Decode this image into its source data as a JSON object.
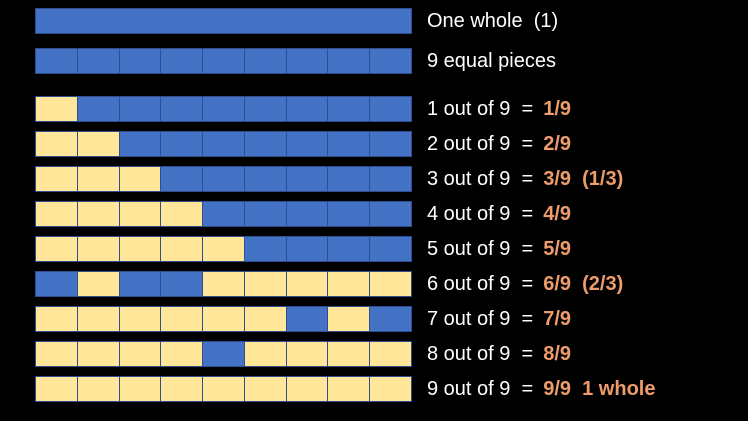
{
  "colors": {
    "background": "#000000",
    "bar_blue": "#4472C4",
    "bar_yellow": "#FFE699",
    "cell_border": "#2E4E8F",
    "label_text": "#FFFFFF",
    "fraction_text": "#ED9C6B"
  },
  "rows": [
    {
      "label": "One whole  (1)",
      "fraction": "",
      "cells": [
        "blue"
      ]
    },
    {
      "label": "9 equal pieces",
      "fraction": "",
      "cells": [
        "blue",
        "blue",
        "blue",
        "blue",
        "blue",
        "blue",
        "blue",
        "blue",
        "blue"
      ]
    },
    {
      "label": "1 out of 9  =",
      "fraction": "1/9",
      "cells": [
        "yellow",
        "blue",
        "blue",
        "blue",
        "blue",
        "blue",
        "blue",
        "blue",
        "blue"
      ]
    },
    {
      "label": "2 out of 9  =",
      "fraction": "2/9",
      "cells": [
        "yellow",
        "yellow",
        "blue",
        "blue",
        "blue",
        "blue",
        "blue",
        "blue",
        "blue"
      ]
    },
    {
      "label": "3 out of 9  =",
      "fraction": "3/9  (1/3)",
      "cells": [
        "yellow",
        "yellow",
        "yellow",
        "blue",
        "blue",
        "blue",
        "blue",
        "blue",
        "blue"
      ]
    },
    {
      "label": "4 out of 9  =",
      "fraction": "4/9",
      "cells": [
        "yellow",
        "yellow",
        "yellow",
        "yellow",
        "blue",
        "blue",
        "blue",
        "blue",
        "blue"
      ]
    },
    {
      "label": "5 out of 9  =",
      "fraction": "5/9",
      "cells": [
        "yellow",
        "yellow",
        "yellow",
        "yellow",
        "yellow",
        "blue",
        "blue",
        "blue",
        "blue"
      ]
    },
    {
      "label": "6 out of 9  =",
      "fraction": "6/9  (2/3)",
      "cells": [
        "blue",
        "yellow",
        "blue",
        "blue",
        "yellow",
        "yellow",
        "yellow",
        "yellow",
        "yellow"
      ]
    },
    {
      "label": "7 out of 9  =",
      "fraction": "7/9",
      "cells": [
        "yellow",
        "yellow",
        "yellow",
        "yellow",
        "yellow",
        "yellow",
        "blue",
        "yellow",
        "blue"
      ]
    },
    {
      "label": "8 out of 9  =",
      "fraction": "8/9",
      "cells": [
        "yellow",
        "yellow",
        "yellow",
        "yellow",
        "blue",
        "yellow",
        "yellow",
        "yellow",
        "yellow"
      ]
    },
    {
      "label": "9 out of 9  =",
      "fraction": "9/9  1 whole",
      "cells": [
        "yellow",
        "yellow",
        "yellow",
        "yellow",
        "yellow",
        "yellow",
        "yellow",
        "yellow",
        "yellow"
      ]
    }
  ]
}
